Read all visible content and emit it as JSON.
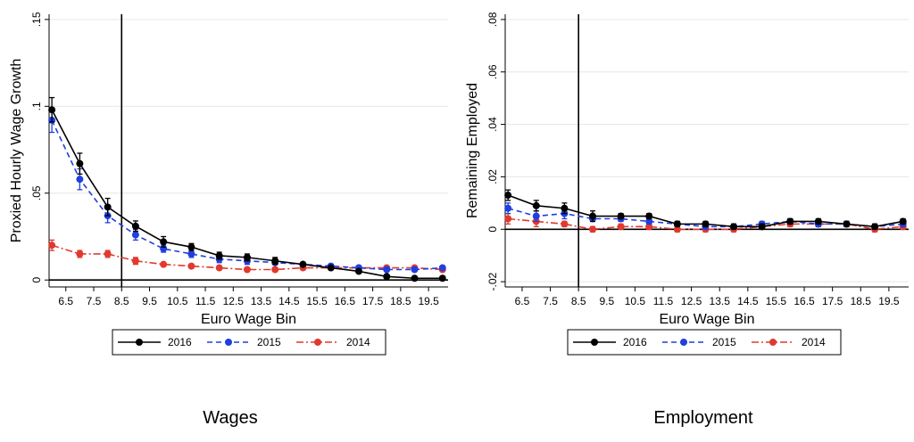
{
  "chart_data": [
    {
      "type": "line",
      "caption": "Wages",
      "xlabel": "Euro Wage Bin",
      "ylabel": "Proxied Hourly Wage Growth",
      "x": [
        6,
        7,
        8,
        9,
        10,
        11,
        12,
        13,
        14,
        15,
        16,
        17,
        18,
        19,
        20
      ],
      "xticks": [
        6.5,
        7.5,
        8.5,
        9.5,
        10.5,
        11.5,
        12.5,
        13.5,
        14.5,
        15.5,
        16.5,
        17.5,
        18.5,
        19.5
      ],
      "xtick_labels": [
        "6.5",
        "7.5",
        "8.5",
        "9.5",
        "10.5",
        "11.5",
        "12.5",
        "13.5",
        "14.5",
        "15.5",
        "16.5",
        "17.5",
        "18.5",
        "19.5"
      ],
      "xlim": [
        5.9,
        20.2
      ],
      "yticks": [
        0,
        0.05,
        0.1,
        0.15
      ],
      "ytick_labels": [
        "0",
        ".05",
        ".1",
        ".15"
      ],
      "ylim": [
        -0.004,
        0.153
      ],
      "vline": 8.5,
      "zero_line": true,
      "grid": true,
      "series": [
        {
          "name": "2016",
          "color": "#000000",
          "dash": "solid",
          "values": [
            0.098,
            0.067,
            0.042,
            0.031,
            0.022,
            0.019,
            0.014,
            0.013,
            0.011,
            0.009,
            0.007,
            0.005,
            0.002,
            0.001,
            0.001
          ],
          "err": [
            0.007,
            0.006,
            0.005,
            0.003,
            0.003,
            0.002,
            0.002,
            0.002,
            0.002,
            0.001,
            0.001,
            0.001,
            0.001,
            0.001,
            0.001
          ]
        },
        {
          "name": "2015",
          "color": "#1f3fe0",
          "dash": "6,4",
          "values": [
            0.092,
            0.058,
            0.037,
            0.026,
            0.018,
            0.015,
            0.012,
            0.011,
            0.01,
            0.009,
            0.008,
            0.007,
            0.006,
            0.006,
            0.007
          ],
          "err": [
            0.007,
            0.006,
            0.004,
            0.003,
            0.002,
            0.002,
            0.002,
            0.002,
            0.001,
            0.001,
            0.001,
            0.001,
            0.001,
            0.001,
            0.001
          ]
        },
        {
          "name": "2014",
          "color": "#e03a2e",
          "dash": "8,3,2,3",
          "values": [
            0.02,
            0.015,
            0.015,
            0.011,
            0.009,
            0.008,
            0.007,
            0.006,
            0.006,
            0.007,
            0.007,
            0.007,
            0.007,
            0.007,
            0.006
          ],
          "err": [
            0.003,
            0.002,
            0.002,
            0.002,
            0.001,
            0.001,
            0.001,
            0.001,
            0.001,
            0.001,
            0.001,
            0.001,
            0.001,
            0.001,
            0.001
          ]
        }
      ]
    },
    {
      "type": "line",
      "caption": "Employment",
      "xlabel": "Euro Wage Bin",
      "ylabel": "Remaining Employed",
      "x": [
        6,
        7,
        8,
        9,
        10,
        11,
        12,
        13,
        14,
        15,
        16,
        17,
        18,
        19,
        20
      ],
      "xticks": [
        6.5,
        7.5,
        8.5,
        9.5,
        10.5,
        11.5,
        12.5,
        13.5,
        14.5,
        15.5,
        16.5,
        17.5,
        18.5,
        19.5
      ],
      "xtick_labels": [
        "6.5",
        "7.5",
        "8.5",
        "9.5",
        "10.5",
        "11.5",
        "12.5",
        "13.5",
        "14.5",
        "15.5",
        "16.5",
        "17.5",
        "18.5",
        "19.5"
      ],
      "xlim": [
        5.9,
        20.2
      ],
      "yticks": [
        -0.02,
        0,
        0.02,
        0.04,
        0.06,
        0.08
      ],
      "ytick_labels": [
        "-.02",
        "0",
        ".02",
        ".04",
        ".06",
        ".08"
      ],
      "ylim": [
        -0.022,
        0.082
      ],
      "vline": 8.5,
      "zero_line": true,
      "grid": true,
      "series": [
        {
          "name": "2016",
          "color": "#000000",
          "dash": "solid",
          "values": [
            0.013,
            0.009,
            0.008,
            0.005,
            0.005,
            0.005,
            0.002,
            0.002,
            0.001,
            0.001,
            0.003,
            0.003,
            0.002,
            0.001,
            0.003
          ],
          "err": [
            0.002,
            0.002,
            0.002,
            0.002,
            0.001,
            0.001,
            0.001,
            0.001,
            0.001,
            0.001,
            0.001,
            0.001,
            0.001,
            0.001,
            0.001
          ]
        },
        {
          "name": "2015",
          "color": "#1f3fe0",
          "dash": "6,4",
          "values": [
            0.008,
            0.005,
            0.006,
            0.004,
            0.004,
            0.003,
            0.002,
            0.001,
            0.001,
            0.002,
            0.003,
            0.002,
            0.002,
            0.001,
            0.002
          ],
          "err": [
            0.002,
            0.002,
            0.002,
            0.001,
            0.001,
            0.001,
            0.001,
            0.001,
            0.001,
            0.001,
            0.001,
            0.001,
            0.001,
            0.001,
            0.001
          ]
        },
        {
          "name": "2014",
          "color": "#e03a2e",
          "dash": "8,3,2,3",
          "values": [
            0.004,
            0.003,
            0.002,
            0.0,
            0.001,
            0.001,
            0.0,
            0.0,
            0.0,
            0.001,
            0.002,
            0.002,
            0.002,
            0.0,
            0.001
          ],
          "err": [
            0.002,
            0.002,
            0.001,
            0.001,
            0.001,
            0.001,
            0.001,
            0.001,
            0.001,
            0.001,
            0.001,
            0.001,
            0.001,
            0.001,
            0.001
          ]
        }
      ]
    }
  ]
}
